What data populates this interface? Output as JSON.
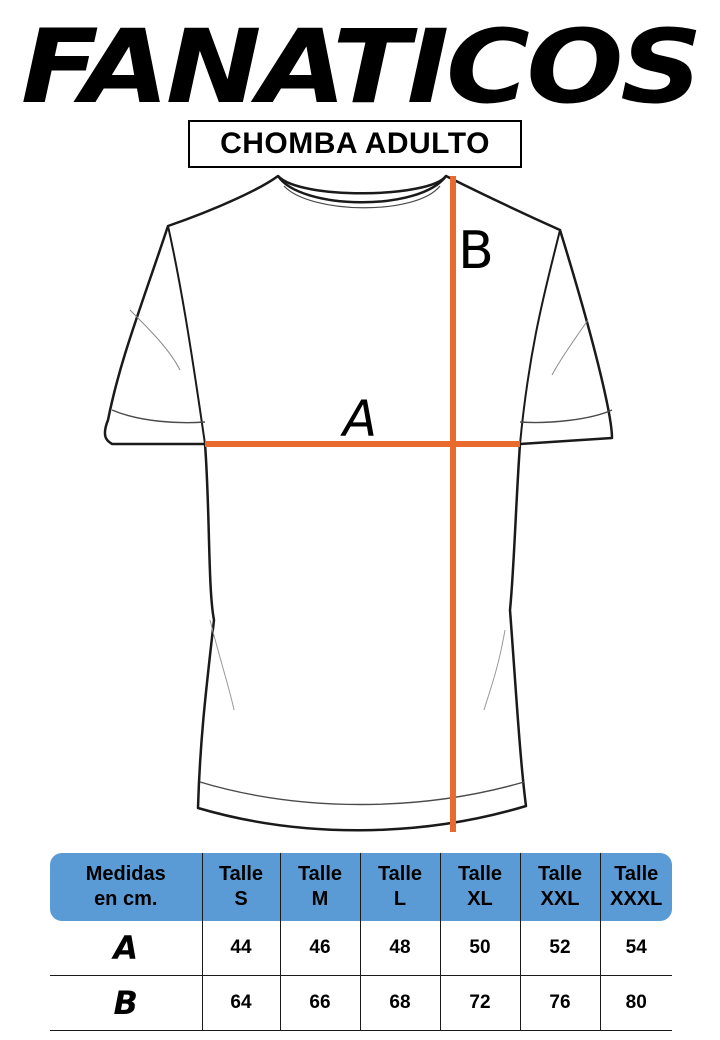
{
  "header": {
    "brand": "FANATICOS",
    "subtitle": "CHOMBA ADULTO"
  },
  "diagram": {
    "label_a": "A",
    "label_b": "B",
    "measure_color": "#e86a2c"
  },
  "size_table": {
    "header_color": "#5b9bd5",
    "corner_label_line1": "Medidas",
    "corner_label_line2": "en cm.",
    "columns": [
      {
        "line1": "Talle",
        "line2": "S"
      },
      {
        "line1": "Talle",
        "line2": "M"
      },
      {
        "line1": "Talle",
        "line2": "L"
      },
      {
        "line1": "Talle",
        "line2": "XL"
      },
      {
        "line1": "Talle",
        "line2": "XXL"
      },
      {
        "line1": "Talle",
        "line2": "XXXL"
      }
    ],
    "rows": [
      {
        "label": "A",
        "values": [
          "44",
          "46",
          "48",
          "50",
          "52",
          "54"
        ]
      },
      {
        "label": "B",
        "values": [
          "64",
          "66",
          "68",
          "72",
          "76",
          "80"
        ]
      }
    ]
  }
}
